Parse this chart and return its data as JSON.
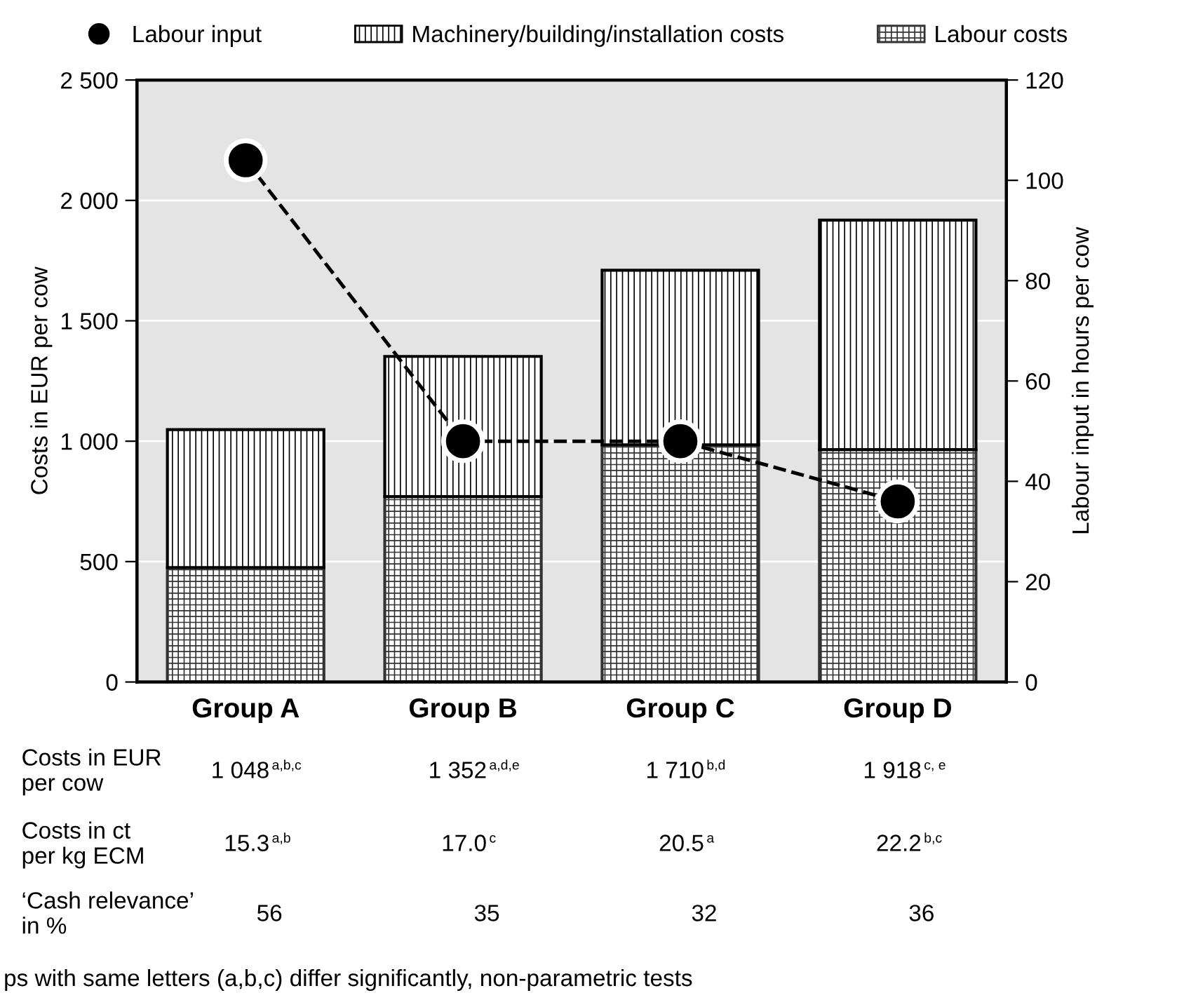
{
  "chart_data": {
    "type": "bar",
    "stacked": true,
    "categories": [
      "Group A",
      "Group B",
      "Group C",
      "Group D"
    ],
    "series": [
      {
        "name": "Labour costs",
        "color": "#333333",
        "values": [
          475,
          770,
          985,
          965
        ]
      },
      {
        "name": "Machinery/building/installation costs",
        "color": "#000000",
        "values": [
          573,
          582,
          725,
          953
        ]
      },
      {
        "name": "Labour input",
        "type": "line",
        "axis": "y2",
        "color": "#000000",
        "marker": "circle",
        "line_style": "dashed",
        "values": [
          104,
          48,
          48,
          36
        ]
      }
    ],
    "ylabel": "Costs in EUR per cow",
    "y2label": "Labour input in hours per cow",
    "ylim": [
      0,
      2500
    ],
    "yticks": [
      0,
      500,
      {
        "value": 1000,
        "label": "1 000"
      },
      {
        "value": 1500,
        "label": "1 500"
      },
      {
        "value": 2000,
        "label": "2 000"
      },
      {
        "value": 2500,
        "label": "2 500"
      }
    ],
    "y2lim": [
      0,
      120
    ],
    "y2ticks": [
      0,
      20,
      40,
      60,
      80,
      100,
      120
    ],
    "grid": "y",
    "legend": "top",
    "annotations": [
      "Costs in EUR\nper cow",
      "1 048$^{a,b,c}$",
      "1 352$^{a,d,e}$",
      "1 710$^{b,d}$",
      "1 918$^{c, e}$",
      "Costs in ct\nper kg ECM",
      "15.3$^{a,b}$",
      "17.0$^{c}$",
      "20.5$^{a}$",
      "22.2$^{b,c}$",
      "‘Cash relevance’\nin %",
      "56",
      "35",
      "32",
      "36",
      "ps with same letters (a,b,c) differ significantly, non-parametric tests"
    ]
  }
}
